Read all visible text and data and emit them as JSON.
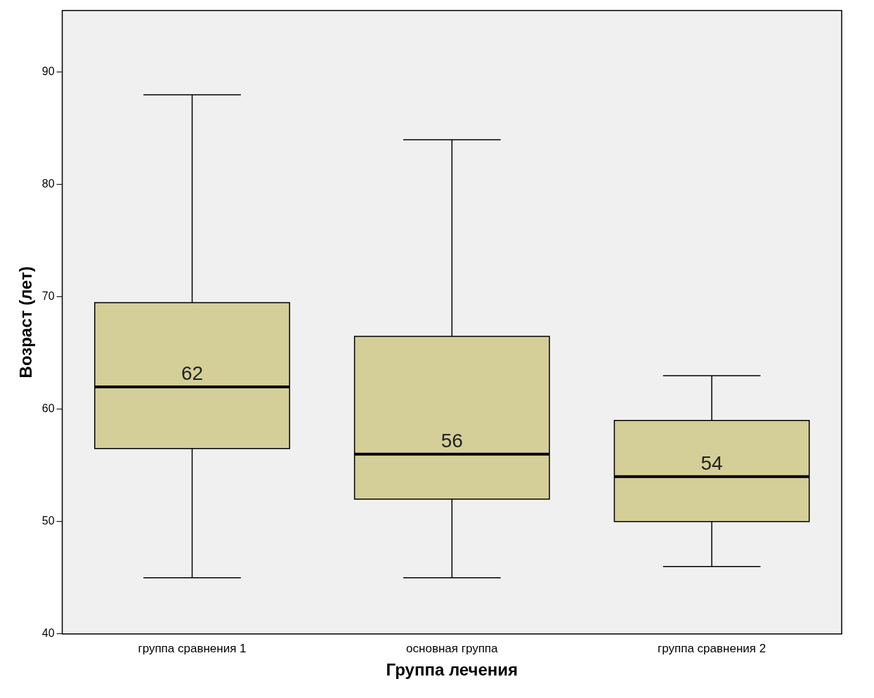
{
  "chart_data": {
    "type": "box",
    "xlabel": "Группа лечения",
    "ylabel": "Возраст (лет)",
    "categories": [
      "группа сравнения 1",
      "основная группа",
      "группа сравнения 2"
    ],
    "boxes": [
      {
        "low": 45,
        "q1": 56.5,
        "median": 62,
        "q3": 69.5,
        "high": 88
      },
      {
        "low": 45,
        "q1": 52,
        "median": 56,
        "q3": 66.5,
        "high": 84
      },
      {
        "low": 46,
        "q1": 50,
        "median": 54,
        "q3": 59,
        "high": 63
      }
    ],
    "color": "#d4cf98",
    "ylim": [
      40,
      95.5
    ],
    "yticks": [
      40,
      50,
      60,
      70,
      80,
      90
    ],
    "grid": false,
    "legend": false,
    "value_labels": [
      "62",
      "56",
      "54"
    ]
  }
}
